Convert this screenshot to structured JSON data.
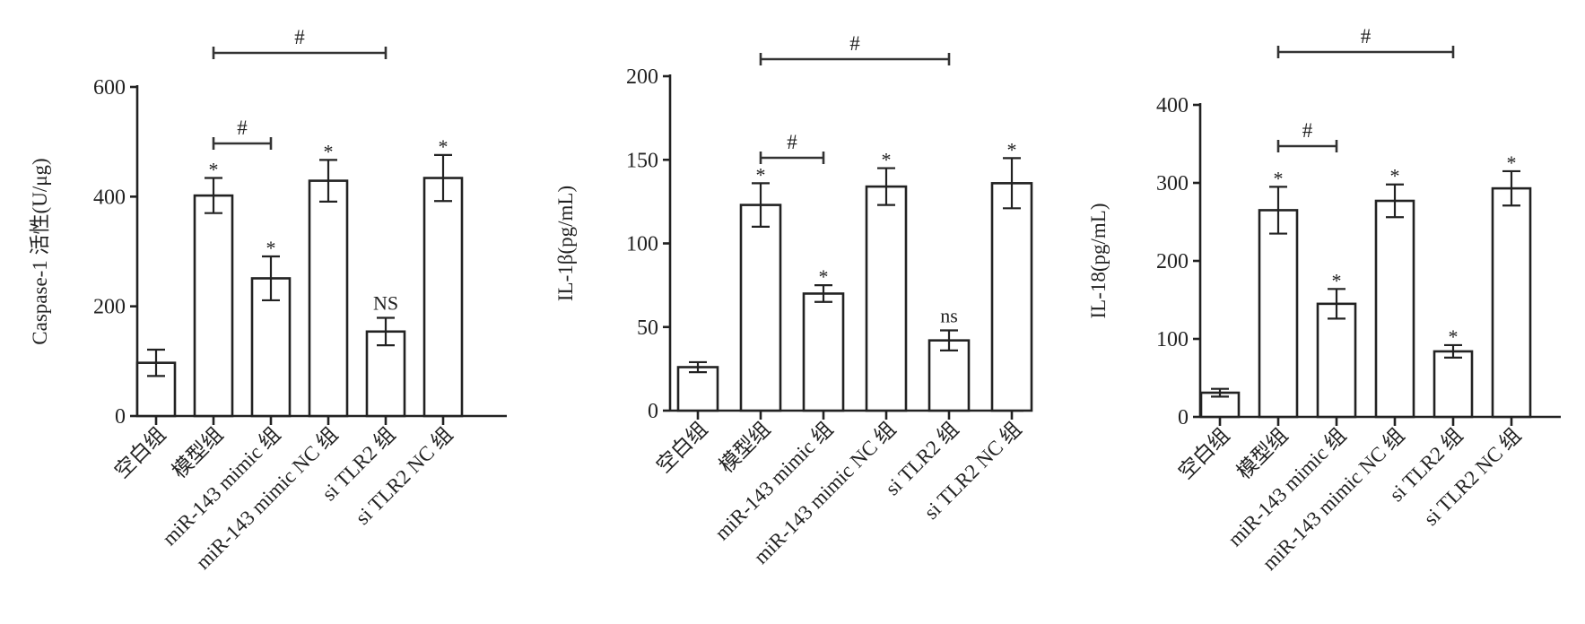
{
  "chart_data": [
    {
      "type": "bar",
      "ylabel": "Caspase-1 活性(U/μg)",
      "ylim": [
        0,
        600
      ],
      "yticks": [
        0,
        200,
        400,
        600
      ],
      "categories": [
        "空白组",
        "模型组",
        "miR-143 mimic 组",
        "miR-143 mimic NC 组",
        "si TLR2 组",
        "si TLR2 NC 组"
      ],
      "values": [
        97,
        402,
        251,
        429,
        154,
        434
      ],
      "errors": [
        24,
        32,
        40,
        38,
        25,
        42
      ],
      "marks": [
        "",
        "*",
        "*",
        "*",
        "NS",
        "*"
      ],
      "brackets": [
        {
          "from": 1,
          "to": 2,
          "label": "#"
        },
        {
          "from": 1,
          "to": 4,
          "label": "#"
        }
      ]
    },
    {
      "type": "bar",
      "ylabel": "IL-1β(pg/mL)",
      "ylim": [
        0,
        200
      ],
      "yticks": [
        0,
        50,
        100,
        150,
        200
      ],
      "categories": [
        "空白组",
        "模型组",
        "miR-143 mimic 组",
        "miR-143 mimic NC 组",
        "si TLR2 组",
        "si TLR2 NC 组"
      ],
      "values": [
        26,
        123,
        70,
        134,
        42,
        136
      ],
      "errors": [
        3,
        13,
        5,
        11,
        6,
        15
      ],
      "marks": [
        "",
        "*",
        "*",
        "*",
        "ns",
        "*"
      ],
      "brackets": [
        {
          "from": 1,
          "to": 2,
          "label": "#"
        },
        {
          "from": 1,
          "to": 4,
          "label": "#"
        }
      ]
    },
    {
      "type": "bar",
      "ylabel": "IL-18(pg/mL)",
      "ylim": [
        0,
        400
      ],
      "yticks": [
        0,
        100,
        200,
        300,
        400
      ],
      "categories": [
        "空白组",
        "模型组",
        "miR-143 mimic 组",
        "miR-143 mimic NC 组",
        "si TLR2 组",
        "si TLR2 NC 组"
      ],
      "values": [
        31,
        265,
        145,
        277,
        84,
        293
      ],
      "errors": [
        5,
        30,
        19,
        21,
        8,
        22
      ],
      "marks": [
        "",
        "*",
        "*",
        "*",
        "*",
        "*"
      ],
      "brackets": [
        {
          "from": 1,
          "to": 2,
          "label": "#"
        },
        {
          "from": 1,
          "to": 4,
          "label": "#"
        }
      ]
    }
  ]
}
